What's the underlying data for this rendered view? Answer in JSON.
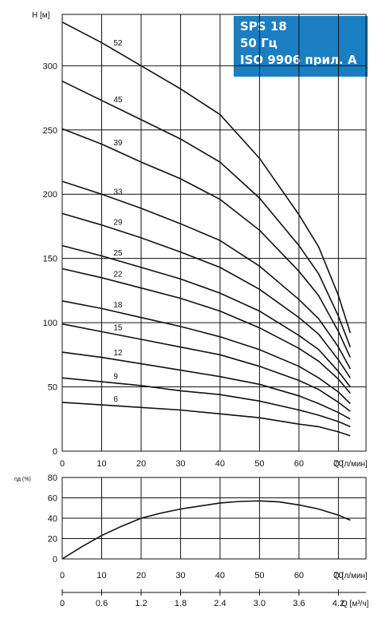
{
  "info_box": {
    "model": "SPS 18",
    "frequency": "50 Гц",
    "standard": "ISO 9906 прил. A"
  },
  "chart_data": [
    {
      "type": "line",
      "ylabel": "H [м]",
      "xlabel": "Q [л/мин]",
      "xlim": [
        0,
        77
      ],
      "ylim": [
        0,
        340
      ],
      "xticks": [
        0,
        10,
        20,
        30,
        40,
        50,
        60,
        70
      ],
      "yticks": [
        0,
        50,
        100,
        150,
        200,
        250,
        300
      ],
      "grid": true,
      "series": [
        {
          "name": "52",
          "x": [
            0,
            10,
            20,
            30,
            40,
            50,
            60,
            65,
            70,
            73
          ],
          "y": [
            334,
            318,
            300,
            282,
            262,
            228,
            184,
            159,
            121,
            92
          ]
        },
        {
          "name": "45",
          "x": [
            0,
            10,
            20,
            30,
            40,
            50,
            60,
            65,
            70,
            73
          ],
          "y": [
            288,
            273,
            258,
            243,
            225,
            197,
            160,
            138,
            105,
            81
          ]
        },
        {
          "name": "39",
          "x": [
            0,
            10,
            20,
            30,
            40,
            50,
            60,
            65,
            70,
            73
          ],
          "y": [
            251,
            239,
            225,
            212,
            196,
            172,
            140,
            121,
            93,
            73
          ]
        },
        {
          "name": "33",
          "x": [
            0,
            10,
            20,
            30,
            40,
            50,
            60,
            65,
            70,
            73
          ],
          "y": [
            210,
            200,
            189,
            177,
            164,
            144,
            118,
            103,
            81,
            64
          ]
        },
        {
          "name": "29",
          "x": [
            0,
            10,
            20,
            30,
            40,
            50,
            60,
            65,
            70,
            73
          ],
          "y": [
            185,
            176,
            166,
            155,
            143,
            126,
            104,
            91,
            71,
            57
          ]
        },
        {
          "name": "25",
          "x": [
            0,
            10,
            20,
            30,
            40,
            50,
            60,
            65,
            70,
            73
          ],
          "y": [
            160,
            152,
            143,
            134,
            123,
            109,
            90,
            79,
            62,
            50
          ]
        },
        {
          "name": "22",
          "x": [
            0,
            10,
            20,
            30,
            40,
            50,
            60,
            65,
            70,
            73
          ],
          "y": [
            142,
            135,
            127,
            119,
            109,
            96,
            80,
            70,
            56,
            45
          ]
        },
        {
          "name": "18",
          "x": [
            0,
            10,
            20,
            30,
            40,
            50,
            60,
            65,
            70,
            73
          ],
          "y": [
            117,
            111,
            104,
            97,
            89,
            79,
            66,
            57,
            46,
            37
          ]
        },
        {
          "name": "15",
          "x": [
            0,
            10,
            20,
            30,
            40,
            50,
            60,
            65,
            70,
            73
          ],
          "y": [
            99,
            93,
            87,
            81,
            75,
            66,
            55,
            48,
            38,
            31
          ]
        },
        {
          "name": "12",
          "x": [
            0,
            10,
            20,
            30,
            40,
            50,
            60,
            65,
            70,
            73
          ],
          "y": [
            77,
            73,
            68,
            63,
            58,
            52,
            43,
            37,
            30,
            25
          ]
        },
        {
          "name": "9",
          "x": [
            0,
            10,
            20,
            30,
            40,
            50,
            60,
            65,
            70,
            73
          ],
          "y": [
            57,
            54,
            51,
            47,
            44,
            39,
            32,
            28,
            23,
            19
          ]
        },
        {
          "name": "6",
          "x": [
            0,
            10,
            20,
            30,
            40,
            50,
            60,
            65,
            70,
            73
          ],
          "y": [
            38,
            36,
            34,
            32,
            29,
            26,
            21,
            19,
            15,
            12
          ]
        }
      ]
    },
    {
      "type": "line",
      "ylabel": "ηд (%)",
      "xlabel": "Q [л/мин]",
      "x2label": "Q [м³/ч]",
      "xlim": [
        0,
        77
      ],
      "ylim": [
        0,
        80
      ],
      "xticks": [
        0,
        10,
        20,
        30,
        40,
        50,
        60,
        70
      ],
      "yticks": [
        0,
        20,
        40,
        60,
        80
      ],
      "x2ticks": [
        "0",
        "0.6",
        "1.2",
        "1.8",
        "2.4",
        "3.0",
        "3.6",
        "4.2"
      ],
      "grid": true,
      "series": [
        {
          "x": [
            0,
            5,
            10,
            15,
            20,
            25,
            30,
            35,
            40,
            45,
            50,
            55,
            60,
            65,
            70,
            73
          ],
          "y": [
            0,
            12,
            23,
            32,
            40,
            45,
            49,
            52,
            55,
            56.5,
            57,
            56,
            53,
            49,
            43,
            38
          ]
        }
      ]
    }
  ]
}
